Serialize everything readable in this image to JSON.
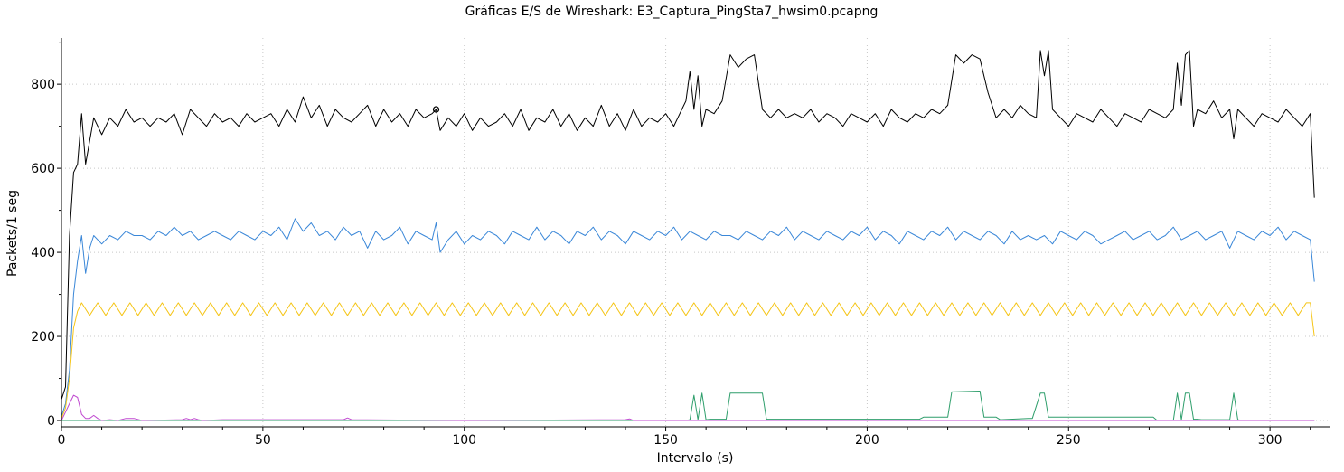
{
  "chart_data": {
    "type": "line",
    "title": "Gráficas E/S de Wireshark: E3_Captura_PingSta7_hwsim0.pcapng",
    "xlabel": "Intervalo (s)",
    "ylabel": "Packets/1 seg",
    "xlim": [
      0,
      315
    ],
    "ylim": [
      -15,
      910
    ],
    "xticks": [
      0,
      50,
      100,
      150,
      200,
      250,
      300
    ],
    "yticks": [
      0,
      200,
      400,
      600,
      800
    ],
    "grid": true,
    "legend": "none",
    "marker": {
      "x": 93,
      "y": 740
    },
    "series": [
      {
        "color": "#000000",
        "x": [
          0,
          1,
          2,
          3,
          4,
          5,
          6,
          8,
          10,
          12,
          14,
          16,
          18,
          20,
          22,
          24,
          26,
          28,
          30,
          32,
          34,
          36,
          38,
          40,
          42,
          44,
          46,
          48,
          50,
          52,
          54,
          56,
          58,
          60,
          62,
          64,
          66,
          68,
          70,
          72,
          74,
          76,
          78,
          80,
          82,
          84,
          86,
          88,
          90,
          92,
          93,
          94,
          96,
          98,
          100,
          102,
          104,
          106,
          108,
          110,
          112,
          114,
          116,
          118,
          120,
          122,
          124,
          126,
          128,
          130,
          132,
          134,
          136,
          138,
          140,
          142,
          144,
          146,
          148,
          150,
          152,
          154,
          155,
          156,
          157,
          158,
          159,
          160,
          162,
          164,
          166,
          168,
          170,
          172,
          174,
          176,
          178,
          180,
          182,
          184,
          186,
          188,
          190,
          192,
          194,
          196,
          198,
          200,
          202,
          204,
          206,
          208,
          210,
          212,
          214,
          216,
          218,
          220,
          222,
          224,
          226,
          228,
          230,
          232,
          234,
          236,
          238,
          240,
          242,
          243,
          244,
          245,
          246,
          248,
          250,
          252,
          254,
          256,
          258,
          260,
          262,
          264,
          266,
          268,
          270,
          272,
          274,
          276,
          277,
          278,
          279,
          280,
          281,
          282,
          284,
          286,
          288,
          290,
          291,
          292,
          294,
          296,
          298,
          300,
          302,
          304,
          306,
          308,
          310,
          311
        ],
        "values": [
          50,
          80,
          440,
          590,
          610,
          730,
          610,
          720,
          680,
          720,
          700,
          740,
          710,
          720,
          700,
          720,
          710,
          730,
          680,
          740,
          720,
          700,
          730,
          710,
          720,
          700,
          730,
          710,
          720,
          730,
          700,
          740,
          710,
          770,
          720,
          750,
          700,
          740,
          720,
          710,
          730,
          750,
          700,
          740,
          710,
          730,
          700,
          740,
          720,
          730,
          740,
          690,
          720,
          700,
          730,
          690,
          720,
          700,
          710,
          730,
          700,
          740,
          690,
          720,
          710,
          740,
          700,
          730,
          690,
          720,
          700,
          750,
          700,
          730,
          690,
          740,
          700,
          720,
          710,
          730,
          700,
          740,
          760,
          830,
          740,
          820,
          700,
          740,
          730,
          760,
          870,
          840,
          860,
          870,
          740,
          720,
          740,
          720,
          730,
          720,
          740,
          710,
          730,
          720,
          700,
          730,
          720,
          710,
          730,
          700,
          740,
          720,
          710,
          730,
          720,
          740,
          730,
          750,
          870,
          850,
          870,
          860,
          780,
          720,
          740,
          720,
          750,
          730,
          720,
          880,
          820,
          880,
          740,
          720,
          700,
          730,
          720,
          710,
          740,
          720,
          700,
          730,
          720,
          710,
          740,
          730,
          720,
          740,
          850,
          750,
          870,
          880,
          700,
          740,
          730,
          760,
          720,
          740,
          670,
          740,
          720,
          700,
          730,
          720,
          710,
          740,
          720,
          700,
          730,
          530
        ]
      },
      {
        "color": "#3a87d8",
        "x": [
          0,
          1,
          2,
          3,
          4,
          5,
          6,
          7,
          8,
          10,
          12,
          14,
          16,
          18,
          20,
          22,
          24,
          26,
          28,
          30,
          32,
          34,
          36,
          38,
          40,
          42,
          44,
          46,
          48,
          50,
          52,
          54,
          56,
          58,
          60,
          62,
          64,
          66,
          68,
          70,
          72,
          74,
          76,
          78,
          80,
          82,
          84,
          86,
          88,
          90,
          92,
          93,
          94,
          96,
          98,
          100,
          102,
          104,
          106,
          108,
          110,
          112,
          114,
          116,
          118,
          120,
          122,
          124,
          126,
          128,
          130,
          132,
          134,
          136,
          138,
          140,
          142,
          144,
          146,
          148,
          150,
          152,
          154,
          156,
          158,
          160,
          162,
          164,
          166,
          168,
          170,
          172,
          174,
          176,
          178,
          180,
          182,
          184,
          186,
          188,
          190,
          192,
          194,
          196,
          198,
          200,
          202,
          204,
          206,
          208,
          210,
          212,
          214,
          216,
          218,
          220,
          222,
          224,
          226,
          228,
          230,
          232,
          234,
          236,
          238,
          240,
          242,
          244,
          246,
          248,
          250,
          252,
          254,
          256,
          258,
          260,
          262,
          264,
          266,
          268,
          270,
          272,
          274,
          276,
          278,
          280,
          282,
          284,
          286,
          288,
          290,
          292,
          294,
          296,
          298,
          300,
          302,
          304,
          306,
          308,
          310,
          311
        ],
        "values": [
          10,
          40,
          120,
          300,
          380,
          440,
          350,
          410,
          440,
          420,
          440,
          430,
          450,
          440,
          440,
          430,
          450,
          440,
          460,
          440,
          450,
          430,
          440,
          450,
          440,
          430,
          450,
          440,
          430,
          450,
          440,
          460,
          430,
          480,
          450,
          470,
          440,
          450,
          430,
          460,
          440,
          450,
          410,
          450,
          430,
          440,
          460,
          420,
          450,
          440,
          430,
          470,
          400,
          430,
          450,
          420,
          440,
          430,
          450,
          440,
          420,
          450,
          440,
          430,
          460,
          430,
          450,
          440,
          420,
          450,
          440,
          460,
          430,
          450,
          440,
          420,
          450,
          440,
          430,
          450,
          440,
          460,
          430,
          450,
          440,
          430,
          450,
          440,
          440,
          430,
          450,
          440,
          430,
          450,
          440,
          460,
          430,
          450,
          440,
          430,
          450,
          440,
          430,
          450,
          440,
          460,
          430,
          450,
          440,
          420,
          450,
          440,
          430,
          450,
          440,
          460,
          430,
          450,
          440,
          430,
          450,
          440,
          420,
          450,
          430,
          440,
          430,
          440,
          420,
          450,
          440,
          430,
          450,
          440,
          420,
          430,
          440,
          450,
          430,
          440,
          450,
          430,
          440,
          460,
          430,
          440,
          450,
          430,
          440,
          450,
          410,
          450,
          440,
          430,
          450,
          440,
          460,
          430,
          450,
          440,
          430,
          330
        ]
      },
      {
        "color": "#f5c518",
        "x": [
          0,
          1,
          2,
          3,
          4,
          5,
          7,
          9,
          11,
          13,
          15,
          17,
          19,
          21,
          23,
          25,
          27,
          29,
          31,
          33,
          35,
          37,
          39,
          41,
          43,
          45,
          47,
          49,
          51,
          53,
          55,
          57,
          59,
          61,
          63,
          65,
          67,
          69,
          71,
          73,
          75,
          77,
          79,
          81,
          83,
          85,
          87,
          89,
          91,
          93,
          95,
          97,
          99,
          101,
          103,
          105,
          107,
          109,
          111,
          113,
          115,
          117,
          119,
          121,
          123,
          125,
          127,
          129,
          131,
          133,
          135,
          137,
          139,
          141,
          143,
          145,
          147,
          149,
          151,
          153,
          155,
          157,
          159,
          161,
          163,
          165,
          167,
          169,
          171,
          173,
          175,
          177,
          179,
          181,
          183,
          185,
          187,
          189,
          191,
          193,
          195,
          197,
          199,
          201,
          203,
          205,
          207,
          209,
          211,
          213,
          215,
          217,
          219,
          221,
          223,
          225,
          227,
          229,
          231,
          233,
          235,
          237,
          239,
          241,
          243,
          245,
          247,
          249,
          251,
          253,
          255,
          257,
          259,
          261,
          263,
          265,
          267,
          269,
          271,
          273,
          275,
          277,
          279,
          281,
          283,
          285,
          287,
          289,
          291,
          293,
          295,
          297,
          299,
          301,
          303,
          305,
          307,
          309,
          310,
          311
        ],
        "values": [
          5,
          30,
          100,
          220,
          260,
          280,
          250,
          280,
          250,
          280,
          250,
          280,
          250,
          280,
          250,
          280,
          250,
          280,
          250,
          280,
          250,
          280,
          250,
          280,
          250,
          280,
          250,
          280,
          250,
          280,
          250,
          280,
          250,
          280,
          250,
          280,
          250,
          280,
          250,
          280,
          250,
          280,
          250,
          280,
          250,
          280,
          250,
          280,
          250,
          280,
          250,
          280,
          250,
          280,
          250,
          280,
          250,
          280,
          250,
          280,
          250,
          280,
          250,
          280,
          250,
          280,
          250,
          280,
          250,
          280,
          250,
          280,
          250,
          280,
          250,
          280,
          250,
          280,
          250,
          280,
          250,
          280,
          250,
          280,
          250,
          280,
          250,
          280,
          250,
          280,
          250,
          280,
          250,
          280,
          250,
          280,
          250,
          280,
          250,
          280,
          250,
          280,
          250,
          280,
          250,
          280,
          250,
          280,
          250,
          280,
          250,
          280,
          250,
          280,
          250,
          280,
          250,
          280,
          250,
          280,
          250,
          280,
          250,
          280,
          250,
          280,
          250,
          280,
          250,
          280,
          250,
          280,
          250,
          280,
          250,
          280,
          250,
          280,
          250,
          280,
          250,
          280,
          250,
          280,
          250,
          280,
          250,
          280,
          250,
          280,
          250,
          280,
          250,
          280,
          250,
          280,
          250,
          280,
          280,
          200
        ]
      },
      {
        "color": "#2e9e6b",
        "x": [
          0,
          150,
          155,
          156,
          157,
          158,
          159,
          160,
          161,
          165,
          166,
          174,
          175,
          213,
          214,
          220,
          221,
          228,
          229,
          232,
          233,
          240,
          241,
          243,
          244,
          245,
          246,
          250,
          271,
          272,
          276,
          277,
          278,
          279,
          280,
          281,
          282,
          283,
          290,
          291,
          292,
          293,
          300,
          311
        ],
        "values": [
          0,
          0,
          0,
          2,
          60,
          2,
          65,
          2,
          3,
          3,
          65,
          65,
          3,
          3,
          8,
          8,
          68,
          70,
          8,
          8,
          2,
          5,
          5,
          65,
          65,
          8,
          8,
          8,
          8,
          0,
          0,
          65,
          2,
          65,
          65,
          3,
          3,
          2,
          2,
          65,
          2,
          0,
          0,
          0
        ]
      },
      {
        "color": "#c04ad0",
        "x": [
          0,
          1,
          2,
          3,
          4,
          5,
          6,
          7,
          8,
          9,
          10,
          12,
          14,
          16,
          18,
          20,
          30,
          31,
          32,
          33,
          34,
          35,
          40,
          70,
          71,
          72,
          100,
          140,
          141,
          142,
          311
        ],
        "values": [
          0,
          20,
          40,
          60,
          55,
          15,
          5,
          5,
          12,
          5,
          0,
          2,
          0,
          5,
          5,
          0,
          2,
          5,
          2,
          5,
          2,
          0,
          2,
          2,
          6,
          2,
          0,
          2,
          4,
          0,
          0
        ]
      }
    ]
  }
}
